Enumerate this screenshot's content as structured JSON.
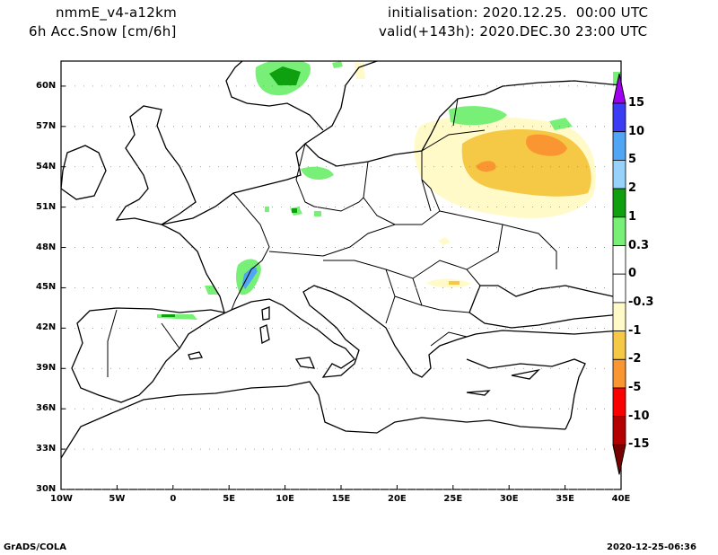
{
  "header": {
    "model": "nmmE_v4-a12km",
    "field": "6h Acc.Snow [cm/6h]",
    "init": "initialisation: 2020.12.25.  00:00 UTC",
    "valid": "valid(+143h): 2020.DEC.30 23:00 UTC"
  },
  "axes": {
    "lat_labels": [
      "60N",
      "57N",
      "54N",
      "51N",
      "48N",
      "45N",
      "42N",
      "39N",
      "36N",
      "33N",
      "30N"
    ],
    "lat_values": [
      60,
      57,
      54,
      51,
      48,
      45,
      42,
      39,
      36,
      33,
      30
    ],
    "lon_labels": [
      "10W",
      "5W",
      "0",
      "5E",
      "10E",
      "15E",
      "20E",
      "25E",
      "30E",
      "35E",
      "40E"
    ],
    "lon_values": [
      -10,
      -5,
      0,
      5,
      10,
      15,
      20,
      25,
      30,
      35,
      40
    ]
  },
  "colorbar": {
    "labels": [
      "15",
      "10",
      "5",
      "2",
      "1",
      "0.3",
      "0",
      "-0.3",
      "-1",
      "-2",
      "-5",
      "-10",
      "-15"
    ],
    "colors": [
      "#a000f0",
      "#3c3cf5",
      "#50a5f5",
      "#96d2fa",
      "#0fa00f",
      "#78f078",
      "#ffffff",
      "#ffffff",
      "#fffac8",
      "#f5c846",
      "#fa9632",
      "#fa0000",
      "#b40000",
      "#780000"
    ]
  },
  "footer": {
    "left": "GrADS/COLA",
    "right": "2020-12-25-06:36"
  }
}
